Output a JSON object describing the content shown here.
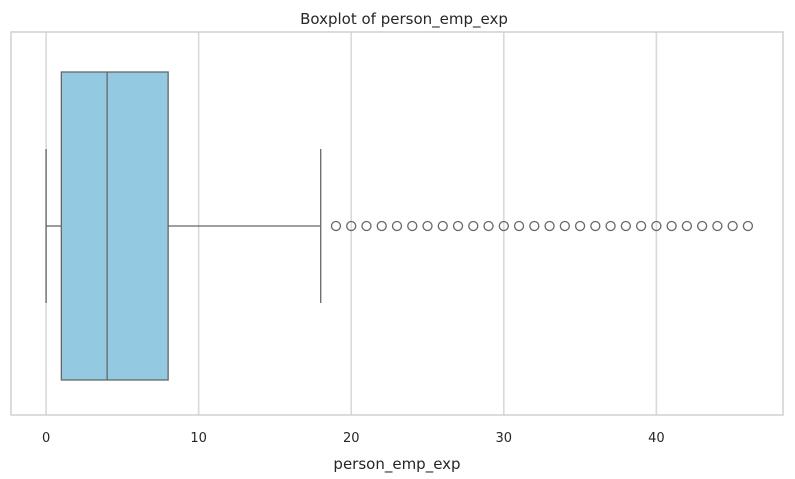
{
  "chart_data": {
    "type": "box",
    "title": "Boxplot of person_emp_exp",
    "xlabel": "person_emp_exp",
    "ylabel": "",
    "xlim": [
      -2.3,
      48.3
    ],
    "xticks": [
      0,
      10,
      20,
      30,
      40
    ],
    "xtick_labels": [
      "0",
      "10",
      "20",
      "30",
      "40"
    ],
    "grid": true,
    "box_color": "#93c9e1",
    "line_color": "#666666",
    "box": {
      "whisker_low": 0,
      "q1": 1,
      "median": 4,
      "q3": 8,
      "whisker_high": 18
    },
    "outliers": [
      19,
      20,
      21,
      22,
      23,
      24,
      25,
      26,
      27,
      28,
      29,
      30,
      31,
      32,
      33,
      34,
      35,
      36,
      37,
      38,
      39,
      40,
      41,
      42,
      43,
      44,
      45,
      46
    ]
  }
}
